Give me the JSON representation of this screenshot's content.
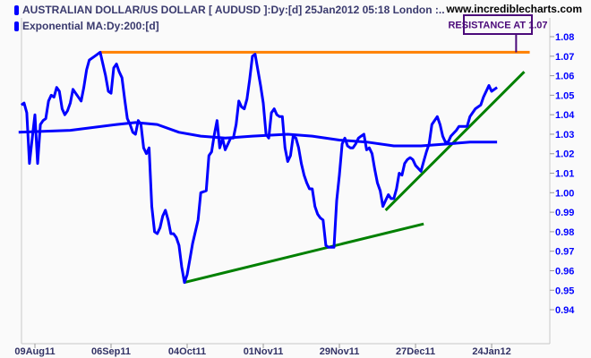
{
  "header": {
    "title": "AUSTRALIAN DOLLAR/US DOLLAR [ AUDUSD ]:Dy:[d]  25Jan2012 05:18 London :..",
    "indicator": "Exponential MA:Dy:200:[d]",
    "site": "www.incrediblecharts.com"
  },
  "chart_data": {
    "type": "line",
    "title": "AUSTRALIAN DOLLAR/US DOLLAR [ AUDUSD ]:Dy:[d]  25Jan2012 05:18 London :..",
    "xlabel": "",
    "ylabel": "",
    "ylim": [
      0.935,
      1.085
    ],
    "xlim": [
      "2011-08-04",
      "2012-02-07"
    ],
    "grid": false,
    "y_axis_side": "right",
    "y_ticks": [
      "0.94",
      "0.95",
      "0.96",
      "0.97",
      "0.98",
      "0.99",
      "1.00",
      "1.01",
      "1.02",
      "1.03",
      "1.04",
      "1.05",
      "1.06",
      "1.07",
      "1.08"
    ],
    "x_ticks": [
      {
        "date": "2011-08-09",
        "label": "09Aug11"
      },
      {
        "date": "2011-09-06",
        "label": "06Sep11"
      },
      {
        "date": "2011-10-04",
        "label": "04Oct11"
      },
      {
        "date": "2011-11-01",
        "label": "01Nov11"
      },
      {
        "date": "2011-11-29",
        "label": "29Nov11"
      },
      {
        "date": "2011-12-27",
        "label": "27Dec11"
      },
      {
        "date": "2012-01-24",
        "label": "24Jan12"
      }
    ],
    "colors": {
      "price": "#0000ff",
      "ema": "#0000ff",
      "support": "#008000",
      "trend": "#008000",
      "resistance": "#ff8000",
      "annotation": "#4b0a7a",
      "yaxis": "#0000ff",
      "xaxis": "#333366"
    },
    "series": [
      {
        "name": "AUSTRALIAN DOLLAR/US DOLLAR [ AUDUSD ]",
        "points": [
          [
            "2011-08-04",
            1.045
          ],
          [
            "2011-08-05",
            1.046
          ],
          [
            "2011-08-06",
            1.041
          ],
          [
            "2011-08-07",
            1.015
          ],
          [
            "2011-08-08",
            1.028
          ],
          [
            "2011-08-09",
            1.04
          ],
          [
            "2011-08-10",
            1.015
          ],
          [
            "2011-08-11",
            1.035
          ],
          [
            "2011-08-12",
            1.037
          ],
          [
            "2011-08-13",
            1.038
          ],
          [
            "2011-08-14",
            1.047
          ],
          [
            "2011-08-15",
            1.05
          ],
          [
            "2011-08-16",
            1.049
          ],
          [
            "2011-08-17",
            1.054
          ],
          [
            "2011-08-18",
            1.052
          ],
          [
            "2011-08-19",
            1.043
          ],
          [
            "2011-08-20",
            1.04
          ],
          [
            "2011-08-21",
            1.042
          ],
          [
            "2011-08-22",
            1.046
          ],
          [
            "2011-08-23",
            1.053
          ],
          [
            "2011-08-24",
            1.051
          ],
          [
            "2011-08-26",
            1.047
          ],
          [
            "2011-08-27",
            1.054
          ],
          [
            "2011-08-28",
            1.063
          ],
          [
            "2011-08-29",
            1.068
          ],
          [
            "2011-08-31",
            1.07
          ],
          [
            "2011-09-02",
            1.072
          ],
          [
            "2011-09-03",
            1.066
          ],
          [
            "2011-09-04",
            1.06
          ],
          [
            "2011-09-05",
            1.052
          ],
          [
            "2011-09-06",
            1.051
          ],
          [
            "2011-09-07",
            1.064
          ],
          [
            "2011-09-08",
            1.066
          ],
          [
            "2011-09-09",
            1.062
          ],
          [
            "2011-09-10",
            1.059
          ],
          [
            "2011-09-11",
            1.048
          ],
          [
            "2011-09-12",
            1.038
          ],
          [
            "2011-09-13",
            1.035
          ],
          [
            "2011-09-14",
            1.031
          ],
          [
            "2011-09-15",
            1.03
          ],
          [
            "2011-09-16",
            1.037
          ],
          [
            "2011-09-17",
            1.035
          ],
          [
            "2011-09-18",
            1.023
          ],
          [
            "2011-09-19",
            1.02
          ],
          [
            "2011-09-20",
            1.023
          ],
          [
            "2011-09-21",
            0.993
          ],
          [
            "2011-09-22",
            0.98
          ],
          [
            "2011-09-23",
            0.979
          ],
          [
            "2011-09-24",
            0.982
          ],
          [
            "2011-09-25",
            0.988
          ],
          [
            "2011-09-26",
            0.991
          ],
          [
            "2011-09-27",
            0.986
          ],
          [
            "2011-09-28",
            0.979
          ],
          [
            "2011-09-29",
            0.979
          ],
          [
            "2011-09-30",
            0.977
          ],
          [
            "2011-10-01",
            0.973
          ],
          [
            "2011-10-02",
            0.962
          ],
          [
            "2011-10-03",
            0.954
          ],
          [
            "2011-10-04",
            0.958
          ],
          [
            "2011-10-05",
            0.966
          ],
          [
            "2011-10-06",
            0.974
          ],
          [
            "2011-10-08",
            0.986
          ],
          [
            "2011-10-09",
            1.0
          ],
          [
            "2011-10-11",
            1.001
          ],
          [
            "2011-10-12",
            1.019
          ],
          [
            "2011-10-13",
            1.021
          ],
          [
            "2011-10-14",
            1.03
          ],
          [
            "2011-10-15",
            1.037
          ],
          [
            "2011-10-16",
            1.023
          ],
          [
            "2011-10-17",
            1.028
          ],
          [
            "2011-10-18",
            1.022
          ],
          [
            "2011-10-20",
            1.028
          ],
          [
            "2011-10-21",
            1.028
          ],
          [
            "2011-10-22",
            1.035
          ],
          [
            "2011-10-23",
            1.047
          ],
          [
            "2011-10-24",
            1.044
          ],
          [
            "2011-10-25",
            1.043
          ],
          [
            "2011-10-26",
            1.048
          ],
          [
            "2011-10-27",
            1.058
          ],
          [
            "2011-10-28",
            1.07
          ],
          [
            "2011-10-29",
            1.071
          ],
          [
            "2011-10-31",
            1.055
          ],
          [
            "2011-11-01",
            1.046
          ],
          [
            "2011-11-02",
            1.03
          ],
          [
            "2011-11-03",
            1.028
          ],
          [
            "2011-11-04",
            1.041
          ],
          [
            "2011-11-05",
            1.043
          ],
          [
            "2011-11-06",
            1.04
          ],
          [
            "2011-11-07",
            1.039
          ],
          [
            "2011-11-08",
            1.039
          ],
          [
            "2011-11-09",
            1.023
          ],
          [
            "2011-11-10",
            1.016
          ],
          [
            "2011-11-11",
            1.019
          ],
          [
            "2011-11-12",
            1.029
          ],
          [
            "2011-11-13",
            1.028
          ],
          [
            "2011-11-14",
            1.023
          ],
          [
            "2011-11-15",
            1.015
          ],
          [
            "2011-11-16",
            1.009
          ],
          [
            "2011-11-17",
            1.005
          ],
          [
            "2011-11-18",
            1.002
          ],
          [
            "2011-11-19",
            1.002
          ],
          [
            "2011-11-20",
            0.993
          ],
          [
            "2011-11-21",
            0.989
          ],
          [
            "2011-11-22",
            0.987
          ],
          [
            "2011-11-23",
            0.986
          ],
          [
            "2011-11-24",
            0.973
          ],
          [
            "2011-11-25",
            0.972
          ],
          [
            "2011-11-26",
            0.972
          ],
          [
            "2011-11-27",
            0.972
          ],
          [
            "2011-11-28",
            0.996
          ],
          [
            "2011-11-29",
            1.009
          ],
          [
            "2011-11-30",
            1.025
          ],
          [
            "2011-12-01",
            1.028
          ],
          [
            "2011-12-02",
            1.024
          ],
          [
            "2011-12-03",
            1.023
          ],
          [
            "2011-12-04",
            1.023
          ],
          [
            "2011-12-05",
            1.025
          ],
          [
            "2011-12-06",
            1.028
          ],
          [
            "2011-12-07",
            1.029
          ],
          [
            "2011-12-08",
            1.03
          ],
          [
            "2011-12-09",
            1.022
          ],
          [
            "2011-12-10",
            1.023
          ],
          [
            "2011-12-11",
            1.02
          ],
          [
            "2011-12-12",
            1.012
          ],
          [
            "2011-12-13",
            1.005
          ],
          [
            "2011-12-14",
            1.001
          ],
          [
            "2011-12-15",
            0.993
          ],
          [
            "2011-12-16",
            0.996
          ],
          [
            "2011-12-17",
            0.999
          ],
          [
            "2011-12-18",
            0.997
          ],
          [
            "2011-12-19",
            0.997
          ],
          [
            "2011-12-20",
            1.002
          ],
          [
            "2011-12-21",
            1.01
          ],
          [
            "2011-12-22",
            1.009
          ],
          [
            "2011-12-23",
            1.015
          ],
          [
            "2011-12-24",
            1.017
          ],
          [
            "2011-12-25",
            1.018
          ],
          [
            "2011-12-26",
            1.017
          ],
          [
            "2011-12-27",
            1.014
          ],
          [
            "2011-12-29",
            1.011
          ],
          [
            "2011-12-30",
            1.016
          ],
          [
            "2011-12-31",
            1.021
          ],
          [
            "2012-01-01",
            1.025
          ],
          [
            "2012-01-02",
            1.035
          ],
          [
            "2012-01-04",
            1.039
          ],
          [
            "2012-01-05",
            1.035
          ],
          [
            "2012-01-06",
            1.029
          ],
          [
            "2012-01-07",
            1.026
          ],
          [
            "2012-01-08",
            1.026
          ],
          [
            "2012-01-09",
            1.029
          ],
          [
            "2012-01-11",
            1.032
          ],
          [
            "2012-01-12",
            1.034
          ],
          [
            "2012-01-13",
            1.034
          ],
          [
            "2012-01-15",
            1.034
          ],
          [
            "2012-01-16",
            1.039
          ],
          [
            "2012-01-18",
            1.043
          ],
          [
            "2012-01-19",
            1.044
          ],
          [
            "2012-01-20",
            1.045
          ],
          [
            "2012-01-21",
            1.049
          ],
          [
            "2012-01-23",
            1.055
          ],
          [
            "2012-01-24",
            1.052
          ],
          [
            "2012-01-25",
            1.053
          ],
          [
            "2012-01-26",
            1.054
          ]
        ]
      },
      {
        "name": "Exponential MA:Dy:200:[d]",
        "points": [
          [
            "2011-08-03",
            1.031
          ],
          [
            "2011-08-22",
            1.032
          ],
          [
            "2011-09-08",
            1.035
          ],
          [
            "2011-09-15",
            1.036
          ],
          [
            "2011-09-23",
            1.035
          ],
          [
            "2011-10-01",
            1.031
          ],
          [
            "2011-10-09",
            1.029
          ],
          [
            "2011-10-18",
            1.028
          ],
          [
            "2011-10-28",
            1.029
          ],
          [
            "2011-11-10",
            1.03
          ],
          [
            "2011-11-19",
            1.029
          ],
          [
            "2011-11-29",
            1.027
          ],
          [
            "2011-12-09",
            1.026
          ],
          [
            "2011-12-19",
            1.024
          ],
          [
            "2011-12-29",
            1.024
          ],
          [
            "2012-01-08",
            1.025
          ],
          [
            "2012-01-16",
            1.026
          ],
          [
            "2012-01-26",
            1.026
          ]
        ]
      }
    ],
    "trendlines": [
      {
        "kind": "resistance",
        "from": [
          "2011-09-02",
          1.072
        ],
        "to": [
          "2012-02-07",
          1.072
        ]
      },
      {
        "kind": "support",
        "from": [
          "2011-10-03",
          0.954
        ],
        "to": [
          "2011-12-30",
          0.984
        ]
      },
      {
        "kind": "trend",
        "from": [
          "2011-12-16",
          0.991
        ],
        "to": [
          "2012-02-05",
          1.062
        ]
      }
    ],
    "annotations": [
      {
        "text": "RESISTANCE AT 1.07",
        "date": "2012-02-02",
        "value": 1.072
      }
    ]
  }
}
